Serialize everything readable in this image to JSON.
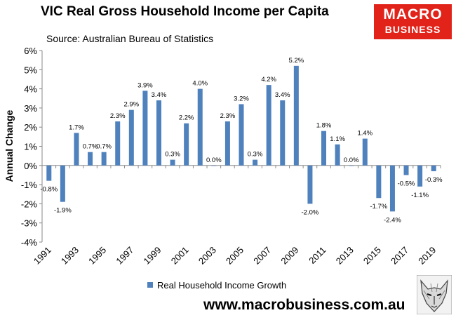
{
  "header": {
    "title": "VIC Real Gross Household Income per Capita",
    "subtitle": "Source: Australian Bureau of Statistics"
  },
  "logo": {
    "line1": "MACRO",
    "line2": "BUSINESS"
  },
  "footer": {
    "website": "www.macrobusiness.com.au",
    "mascot_icon": "wolf-face-icon"
  },
  "chart_data": {
    "type": "bar",
    "title": "VIC Real Gross Household Income per Capita",
    "ylabel": "Annual Change",
    "xlabel": "",
    "ylim": [
      -4,
      6
    ],
    "yticks": [
      -4,
      -3,
      -2,
      -1,
      0,
      1,
      2,
      3,
      4,
      5,
      6
    ],
    "ytick_labels": [
      "-4%",
      "-3%",
      "-2%",
      "-1%",
      "0%",
      "1%",
      "2%",
      "3%",
      "4%",
      "5%",
      "6%"
    ],
    "grid": false,
    "legend_position": "bottom",
    "categories": [
      "1991",
      "1992",
      "1993",
      "1994",
      "1995",
      "1996",
      "1997",
      "1998",
      "1999",
      "2000",
      "2001",
      "2002",
      "2003",
      "2004",
      "2005",
      "2006",
      "2007",
      "2008",
      "2009",
      "2010",
      "2011",
      "2012",
      "2013",
      "2014",
      "2015",
      "2016",
      "2017",
      "2018",
      "2019"
    ],
    "xtick_labels": [
      "1991",
      "1993",
      "1995",
      "1997",
      "1999",
      "2001",
      "2003",
      "2005",
      "2007",
      "2009",
      "2011",
      "2013",
      "2015",
      "2017",
      "2019"
    ],
    "series": [
      {
        "name": "Real Household Income Growth",
        "color": "#4f81bd",
        "values": [
          -0.8,
          -1.9,
          1.7,
          0.7,
          0.7,
          2.3,
          2.9,
          3.9,
          3.4,
          0.3,
          2.2,
          4.0,
          0.0,
          2.3,
          3.2,
          0.3,
          4.2,
          3.4,
          5.2,
          -2.0,
          1.8,
          1.1,
          0.0,
          1.4,
          -1.7,
          -2.4,
          -0.5,
          -1.1,
          -0.3
        ],
        "data_labels": [
          "-0.8%",
          "-1.9%",
          "1.7%",
          "0.7%",
          "0.7%",
          "2.3%",
          "2.9%",
          "3.9%",
          "3.4%",
          "0.3%",
          "2.2%",
          "4.0%",
          "0.0%",
          "2.3%",
          "3.2%",
          "0.3%",
          "4.2%",
          "3.4%",
          "5.2%",
          "-2.0%",
          "1.8%",
          "1.1%",
          "0.0%",
          "1.4%",
          "-1.7%",
          "-2.4%",
          "-0.5%",
          "-1.1%",
          "-0.3%"
        ]
      }
    ]
  }
}
